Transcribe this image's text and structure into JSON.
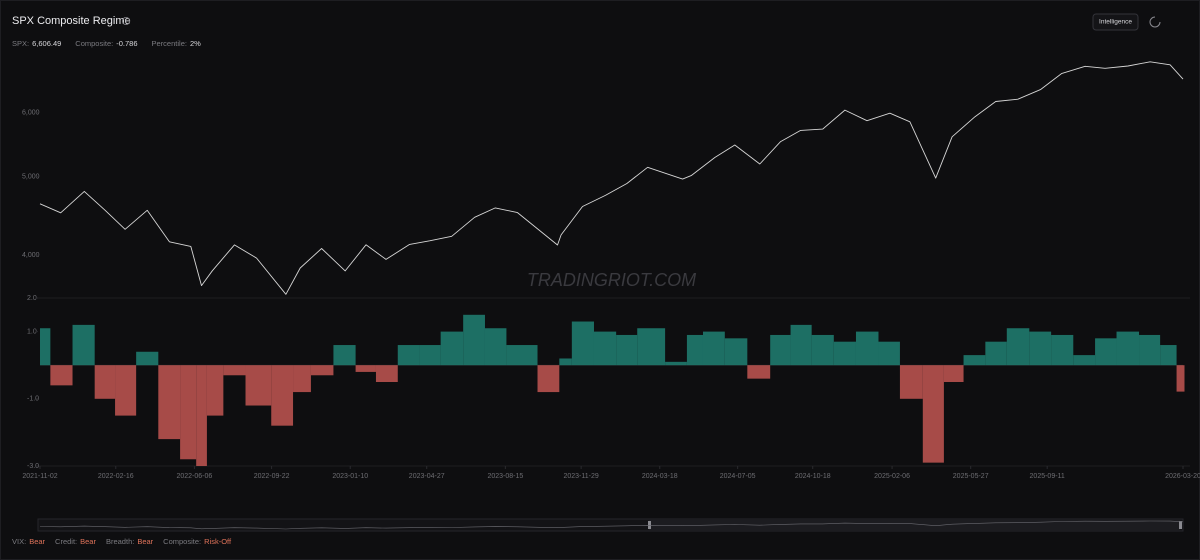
{
  "header": {
    "title": "SPX Composite Regime",
    "stats": [
      {
        "label": "SPX:",
        "value": "6,606.49"
      },
      {
        "label": "Composite:",
        "value": "-0.786"
      },
      {
        "label": "Percentile:",
        "value": "2%"
      }
    ],
    "button": "Intelligence"
  },
  "chart_data": [
    {
      "type": "line",
      "log_scale": true,
      "x": [
        "2021-11-02",
        "2021-12-01",
        "2022-01-03",
        "2022-02-01",
        "2022-03-01",
        "2022-04-01",
        "2022-05-02",
        "2022-06-01",
        "2022-06-16",
        "2022-07-01",
        "2022-08-01",
        "2022-09-01",
        "2022-10-12",
        "2022-11-01",
        "2022-12-01",
        "2023-01-03",
        "2023-02-01",
        "2023-03-01",
        "2023-04-03",
        "2023-05-01",
        "2023-06-01",
        "2023-07-03",
        "2023-08-01",
        "2023-09-01",
        "2023-10-27",
        "2023-11-01",
        "2023-12-01",
        "2024-01-02",
        "2024-02-01",
        "2024-03-01",
        "2024-04-19",
        "2024-05-01",
        "2024-06-03",
        "2024-07-01",
        "2024-08-05",
        "2024-09-03",
        "2024-10-01",
        "2024-11-01",
        "2024-12-02",
        "2025-01-02",
        "2025-02-03",
        "2025-03-03",
        "2025-04-08",
        "2025-05-01",
        "2025-06-02",
        "2025-07-01",
        "2025-08-01",
        "2025-09-02",
        "2025-10-01",
        "2025-11-03",
        "2025-12-01",
        "2026-01-02",
        "2026-02-02",
        "2026-03-02",
        "2026-03-20"
      ],
      "xlim": [
        "2021-11-02",
        "2026-03-20"
      ],
      "series": [
        {
          "color": "#d6d6d6",
          "values": [
            4630,
            4513,
            4796,
            4546,
            4306,
            4545,
            4155,
            4101,
            3667,
            3825,
            4118,
            3966,
            3577,
            3856,
            4076,
            3824,
            4119,
            3951,
            4124,
            4167,
            4221,
            4455,
            4576,
            4515,
            4117,
            4237,
            4594,
            4742,
            4906,
            5137,
            4967,
            5018,
            5283,
            5475,
            5186,
            5528,
            5708,
            5728,
            6047,
            5868,
            5994,
            5849,
            4982,
            5604,
            5935,
            6198,
            6238,
            6415,
            6711,
            6851,
            6812,
            6858,
            6940,
            6880,
            6606.49
          ]
        }
      ],
      "ylim": [
        3550,
        7280
      ],
      "yticks": [
        {
          "value": 4000,
          "label": "4,000"
        },
        {
          "value": 5000,
          "label": "5,000"
        },
        {
          "value": 6000,
          "label": "6,000"
        }
      ],
      "watermark": "TRADINGRIOT.COM"
    },
    {
      "type": "bar",
      "x": [
        "2021-11-02",
        "2021-12-01",
        "2022-01-03",
        "2022-02-01",
        "2022-03-01",
        "2022-04-01",
        "2022-05-02",
        "2022-06-01",
        "2022-06-16",
        "2022-07-01",
        "2022-08-01",
        "2022-09-01",
        "2022-10-12",
        "2022-11-01",
        "2022-12-01",
        "2023-01-03",
        "2023-02-01",
        "2023-03-01",
        "2023-04-03",
        "2023-05-01",
        "2023-06-01",
        "2023-07-03",
        "2023-08-01",
        "2023-09-01",
        "2023-10-27",
        "2023-11-01",
        "2023-12-01",
        "2024-01-02",
        "2024-02-01",
        "2024-03-01",
        "2024-04-19",
        "2024-05-01",
        "2024-06-03",
        "2024-07-01",
        "2024-08-05",
        "2024-09-03",
        "2024-10-01",
        "2024-11-01",
        "2024-12-02",
        "2025-01-02",
        "2025-02-03",
        "2025-03-03",
        "2025-04-08",
        "2025-05-01",
        "2025-06-02",
        "2025-07-01",
        "2025-08-01",
        "2025-09-02",
        "2025-10-01",
        "2025-11-03",
        "2025-12-01",
        "2026-01-02",
        "2026-02-02",
        "2026-03-02",
        "2026-03-20"
      ],
      "xlim": [
        "2021-11-02",
        "2026-03-20"
      ],
      "values": [
        1.1,
        -0.6,
        1.2,
        -1.0,
        -1.5,
        0.4,
        -2.2,
        -2.8,
        -3.0,
        -1.5,
        -0.3,
        -1.2,
        -1.8,
        -0.8,
        -0.3,
        0.6,
        -0.2,
        -0.5,
        0.6,
        0.6,
        1.0,
        1.5,
        1.1,
        0.6,
        -0.8,
        0.2,
        1.3,
        1.0,
        0.9,
        1.1,
        0.1,
        0.9,
        1.0,
        0.8,
        -0.4,
        0.9,
        1.2,
        0.9,
        0.7,
        1.0,
        0.7,
        -1.0,
        -2.9,
        -0.5,
        0.3,
        0.7,
        1.1,
        1.0,
        0.9,
        0.3,
        0.8,
        1.0,
        0.9,
        0.6,
        -0.786
      ],
      "positive_color": "#1f7a6e",
      "negative_color": "#b8524f",
      "ylim": [
        -3,
        2
      ],
      "yticks": [
        {
          "value": 2,
          "label": "2.0"
        },
        {
          "value": 1,
          "label": "1.0"
        },
        {
          "value": -1,
          "label": "-1.0"
        },
        {
          "value": -3,
          "label": "-3.0"
        }
      ],
      "xticks": [
        "2021-11-02",
        "2022-02-16",
        "2022-06-06",
        "2022-09-22",
        "2023-01-10",
        "2023-04-27",
        "2023-08-15",
        "2023-11-29",
        "2024-03-18",
        "2024-07-05",
        "2024-10-18",
        "2025-02-06",
        "2025-05-27",
        "2025-09-11",
        "2026-03-20"
      ]
    }
  ],
  "footer": [
    {
      "label": "VIX:",
      "value": "Bear"
    },
    {
      "label": "Credit:",
      "value": "Bear"
    },
    {
      "label": "Breadth:",
      "value": "Bear"
    },
    {
      "label": "Composite:",
      "value": "Risk-Off"
    }
  ]
}
